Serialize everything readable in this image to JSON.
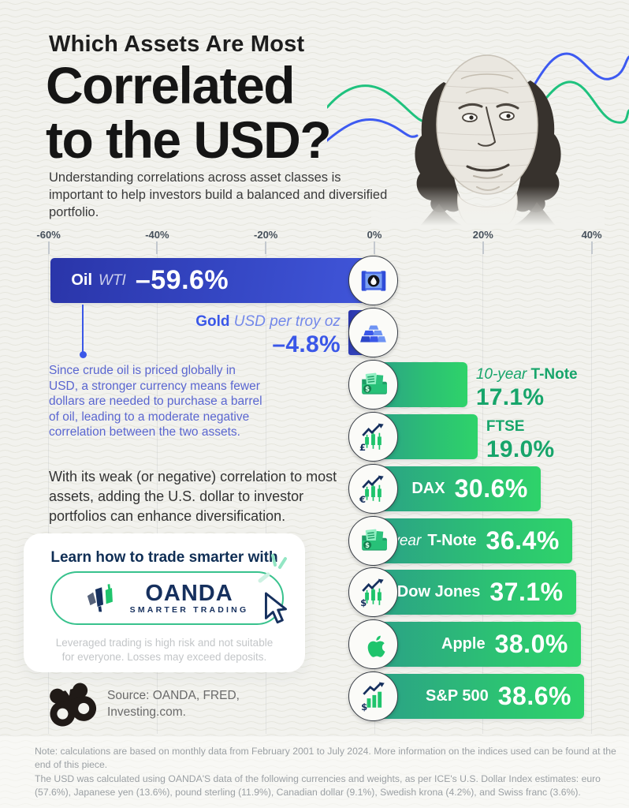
{
  "header": {
    "kicker": "Which Assets Are Most",
    "title_line2": "Correlated",
    "title_line3": "to the USD?",
    "subtitle": "Understanding correlations across asset classes is important to help investors build a balanced and diversified portfolio."
  },
  "chart_data": {
    "type": "bar",
    "orientation": "horizontal",
    "title": "Which Assets Are Most Correlated to the USD?",
    "unit": "%",
    "xlim": [
      -60,
      46
    ],
    "axis": {
      "tick_labels": [
        "-60%",
        "-40%",
        "-20%",
        "0%",
        "20%",
        "40%"
      ],
      "tick_values": [
        -60,
        -40,
        -20,
        0,
        20,
        40
      ]
    },
    "assets": [
      {
        "label": "Oil",
        "qualifier": "WTI",
        "value": -59.6,
        "display": "–59.6%",
        "icon": "oil-barrel-icon",
        "palette": "blue",
        "label_style": "inside-left"
      },
      {
        "label": "Gold",
        "qualifier": "USD per troy oz",
        "value": -4.8,
        "display": "–4.8%",
        "icon": "gold-bars-icon",
        "palette": "blue",
        "label_style": "outside-left"
      },
      {
        "label": "T-Note",
        "label_prefix_italic": "10-year",
        "value": 17.1,
        "display": "17.1%",
        "icon": "treasury-folder-icon",
        "palette": "green",
        "label_style": "outside-right"
      },
      {
        "label": "FTSE",
        "value": 19.0,
        "display": "19.0%",
        "icon": "candlestick-pound-icon",
        "palette": "green",
        "label_style": "outside-right"
      },
      {
        "label": "DAX",
        "value": 30.6,
        "display": "30.6%",
        "icon": "candlestick-euro-icon",
        "palette": "green",
        "label_style": "inside-right"
      },
      {
        "label": "T-Note",
        "label_prefix_italic": "2-year",
        "value": 36.4,
        "display": "36.4%",
        "icon": "treasury-folder-icon",
        "palette": "green",
        "label_style": "inside-right"
      },
      {
        "label": "Dow Jones",
        "value": 37.1,
        "display": "37.1%",
        "icon": "candlestick-dollar-icon",
        "palette": "green",
        "label_style": "inside-right"
      },
      {
        "label": "Apple",
        "value": 38.0,
        "display": "38.0%",
        "icon": "apple-logo-icon",
        "palette": "green",
        "label_style": "inside-right"
      },
      {
        "label": "S&P 500",
        "value": 38.6,
        "display": "38.6%",
        "icon": "bar-chart-dollar-icon",
        "palette": "green",
        "label_style": "inside-right"
      }
    ]
  },
  "oil_annotation": "Since crude oil is priced globally in USD, a stronger currency means fewer dollars are needed to purchase a barrel of oil, leading to a moderate negative correlation between the two assets.",
  "insight": "With its weak (or negative) correlation to most assets, adding the U.S. dollar to investor portfolios can enhance diversification.",
  "cta": {
    "headline": "Learn how to trade smarter with",
    "brand": "OANDA",
    "tagline": "SMARTER TRADING",
    "disclaimer_line1": "Leveraged trading is high risk and not suitable",
    "disclaimer_line2": "for everyone. Losses may exceed deposits."
  },
  "source": {
    "line1": "Source: OANDA, FRED,",
    "line2": "Investing.com."
  },
  "footnote": {
    "para1": "Note: calculations are based on monthly data from February 2001 to July 2024. More information on the indices used can be found at the end of this piece.",
    "para2": "The USD was calculated using OANDA'S data of the following currencies and weights, as per ICE's U.S. Dollar Index estimates: euro (57.6%), Japanese yen (13.6%), pound sterling (11.9%), Canadian dollar (9.1%), Swedish krona (4.2%), and Swiss franc (3.6%)."
  },
  "colors": {
    "background": "#f2f2ee",
    "blue_bar_start": "#2a35a9",
    "blue_bar_end": "#4156da",
    "green_bar_start": "#2ba186",
    "green_bar_end": "#2ed36a",
    "green_text": "#17a56b",
    "blue_text": "#3a57e8",
    "annotation_blue": "#5a66d0",
    "navy": "#16305e",
    "pill_border_green": "#38c28d",
    "wave_green": "#1fc27e",
    "wave_blue": "#3d5af1"
  }
}
